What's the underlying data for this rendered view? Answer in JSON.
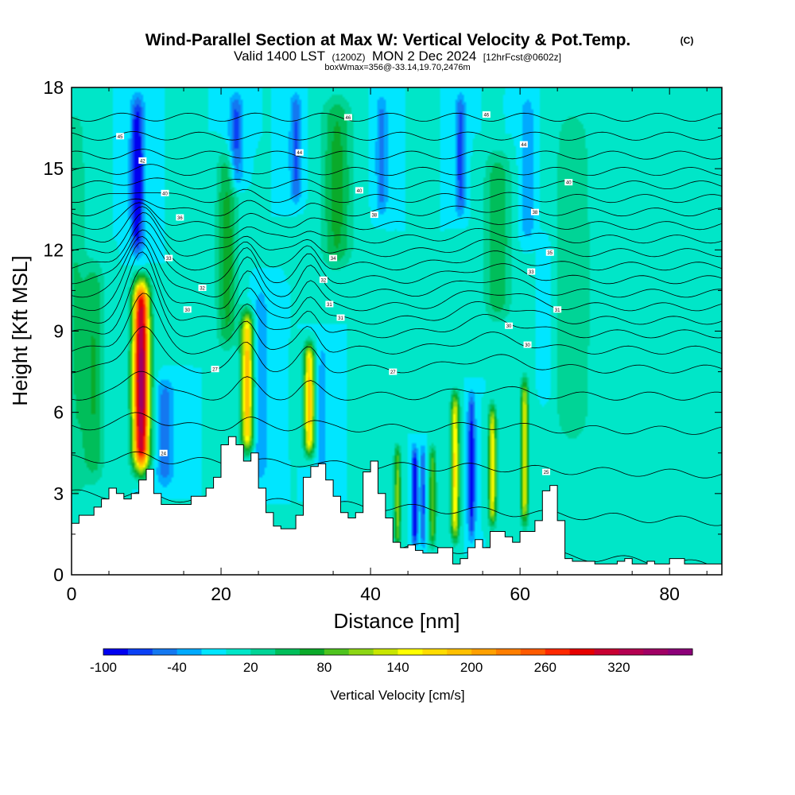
{
  "chart_data": {
    "type": "heatmap",
    "title": "Wind-Parallel Section at Max W: Vertical Velocity & Pot.Temp.",
    "title_suffix": "(C)",
    "subtitle": {
      "valid": "Valid 1400 LST",
      "utc": "(1200Z)",
      "date": "MON 2 Dec 2024",
      "forecast": "[12hrFcst@0602z]"
    },
    "box_info": "boxWmax=356@-33.14,19.70,2476m",
    "xlabel": "Distance [nm]",
    "ylabel": "Height [Kft MSL]",
    "xlim": [
      0,
      87
    ],
    "ylim": [
      0,
      18
    ],
    "x_ticks": [
      0,
      20,
      40,
      60,
      80
    ],
    "y_ticks": [
      0,
      3,
      6,
      9,
      12,
      15,
      18
    ],
    "background_value": 0,
    "updrafts": [
      {
        "x": 9.3,
        "base": 3.5,
        "top": 11.2,
        "peak": 356,
        "width": 1.1
      },
      {
        "x": 23.5,
        "base": 4.3,
        "top": 10.0,
        "peak": 200,
        "width": 0.8
      },
      {
        "x": 31.8,
        "base": 4.2,
        "top": 8.8,
        "peak": 190,
        "width": 0.7
      },
      {
        "x": 51.3,
        "base": 1.0,
        "top": 7.0,
        "peak": 170,
        "width": 0.55
      },
      {
        "x": 56.3,
        "base": 1.6,
        "top": 6.5,
        "peak": 160,
        "width": 0.5
      },
      {
        "x": 60.6,
        "base": 1.6,
        "top": 7.5,
        "peak": 150,
        "width": 0.5
      },
      {
        "x": 43.6,
        "base": 0.8,
        "top": 5.0,
        "peak": 110,
        "width": 0.45
      },
      {
        "x": 48.3,
        "base": 0.8,
        "top": 5.0,
        "peak": 100,
        "width": 0.45
      },
      {
        "x": 20.8,
        "base": 8.0,
        "top": 16.0,
        "peak": 70,
        "width": 1.4
      },
      {
        "x": 35.5,
        "base": 11.0,
        "top": 18.0,
        "peak": 70,
        "width": 2.0
      },
      {
        "x": 57.0,
        "base": 9.0,
        "top": 16.0,
        "peak": 60,
        "width": 1.8
      },
      {
        "x": 3.0,
        "base": 3.0,
        "top": 12.0,
        "peak": 60,
        "width": 1.4
      },
      {
        "x": 0.5,
        "base": 2.0,
        "top": 18.0,
        "peak": 40,
        "width": 1.5
      },
      {
        "x": 67.0,
        "base": 4.0,
        "top": 18.0,
        "peak": 35,
        "width": 3.0
      }
    ],
    "downdrafts": [
      {
        "x": 8.8,
        "base": 11.5,
        "top": 18.0,
        "peak": -100,
        "width": 0.9
      },
      {
        "x": 12.5,
        "base": 3.0,
        "top": 7.5,
        "peak": -55,
        "width": 1.2
      },
      {
        "x": 22.0,
        "base": 14.0,
        "top": 18.0,
        "peak": -70,
        "width": 0.9
      },
      {
        "x": 25.3,
        "base": 3.0,
        "top": 11.0,
        "peak": -40,
        "width": 1.0
      },
      {
        "x": 30.0,
        "base": 13.5,
        "top": 18.0,
        "peak": -65,
        "width": 0.8
      },
      {
        "x": 33.5,
        "base": 3.0,
        "top": 9.0,
        "peak": -30,
        "width": 0.8
      },
      {
        "x": 45.9,
        "base": 0.8,
        "top": 5.0,
        "peak": -100,
        "width": 0.4
      },
      {
        "x": 53.5,
        "base": 1.0,
        "top": 7.0,
        "peak": -90,
        "width": 0.5
      },
      {
        "x": 47.0,
        "base": 0.8,
        "top": 5.0,
        "peak": -70,
        "width": 0.35
      },
      {
        "x": 52.0,
        "base": 13.0,
        "top": 18.0,
        "peak": -70,
        "width": 0.7
      },
      {
        "x": 41.5,
        "base": 13.0,
        "top": 18.0,
        "peak": -50,
        "width": 0.8
      },
      {
        "x": 61.0,
        "base": 12.0,
        "top": 18.0,
        "peak": -40,
        "width": 1.0
      },
      {
        "x": 63.5,
        "base": 6.0,
        "top": 13.0,
        "peak": -25,
        "width": 0.9
      }
    ],
    "terrain": {
      "x": [
        0,
        1,
        2,
        3,
        4,
        5,
        6,
        7,
        8,
        9,
        10,
        11,
        12,
        13,
        14,
        15,
        16,
        17,
        18,
        19,
        20,
        21,
        22,
        23,
        24,
        25,
        26,
        27,
        28,
        29,
        30,
        31,
        32,
        33,
        34,
        35,
        36,
        37,
        38,
        39,
        40,
        41,
        42,
        43,
        44,
        45,
        46,
        47,
        48,
        49,
        50,
        51,
        52,
        53,
        54,
        55,
        56,
        57,
        58,
        59,
        60,
        61,
        62,
        63,
        64,
        65,
        66,
        67,
        68,
        69,
        70,
        71,
        72,
        73,
        74,
        75,
        76,
        77,
        78,
        79,
        80,
        81,
        82,
        83,
        84,
        85,
        86,
        87
      ],
      "height": [
        1.9,
        2.2,
        2.2,
        2.5,
        2.8,
        3.2,
        3.0,
        2.8,
        3.0,
        3.5,
        3.9,
        3.0,
        2.6,
        2.6,
        2.6,
        2.6,
        2.9,
        2.9,
        3.2,
        3.6,
        4.8,
        5.1,
        4.8,
        4.2,
        4.5,
        3.2,
        2.3,
        1.8,
        1.7,
        1.7,
        2.2,
        3.6,
        4.0,
        4.1,
        3.5,
        2.9,
        2.3,
        2.1,
        2.3,
        3.8,
        4.2,
        3.0,
        2.1,
        1.2,
        1.0,
        1.1,
        0.9,
        0.8,
        0.8,
        1.0,
        1.0,
        0.4,
        0.6,
        1.0,
        1.3,
        1.0,
        1.6,
        1.6,
        1.4,
        1.2,
        1.6,
        1.6,
        2.0,
        3.1,
        3.3,
        2.0,
        0.6,
        0.5,
        0.5,
        0.5,
        0.4,
        0.4,
        0.4,
        0.5,
        0.6,
        0.4,
        0.4,
        0.5,
        0.4,
        0.4,
        0.6,
        0.6,
        0.4,
        0.4,
        0.4,
        0.4,
        0.4,
        0.4
      ]
    },
    "colorbar": {
      "label": "Vertical Velocity [cm/s]",
      "min": -100,
      "max": 380,
      "step": 20,
      "tick_values": [
        -100,
        -40,
        20,
        80,
        140,
        200,
        260,
        320
      ],
      "tick_labels": [
        "-100",
        "-40",
        "20",
        "80",
        "140",
        "200",
        "260",
        "320"
      ],
      "colors": [
        "#0000f0",
        "#0a40f5",
        "#1478f0",
        "#00aaff",
        "#00e6ff",
        "#00e6c8",
        "#00d496",
        "#00be5a",
        "#0aaa2a",
        "#4ec31e",
        "#8cd614",
        "#c8e600",
        "#ffff00",
        "#ffdc00",
        "#ffc000",
        "#ffa000",
        "#ff7e00",
        "#ff5a00",
        "#ff2800",
        "#e60000",
        "#c80032",
        "#b40050",
        "#a00064",
        "#8c0078"
      ]
    },
    "isentropes": {
      "levels": [
        24,
        25,
        26,
        27,
        28,
        29,
        30,
        31,
        32,
        33,
        34,
        35,
        36,
        37,
        38,
        39,
        40,
        41,
        42,
        43,
        44,
        45,
        46
      ],
      "base_heights": [
        1.8,
        3.0,
        4.3,
        5.5,
        6.6,
        7.6,
        8.3,
        8.9,
        9.4,
        9.9,
        10.4,
        10.9,
        11.4,
        11.9,
        12.4,
        12.9,
        13.4,
        13.9,
        14.4,
        14.9,
        15.5,
        16.2,
        16.9
      ],
      "labels": [
        {
          "x": 12.3,
          "y": 4.5,
          "text": "24"
        },
        {
          "x": 19.2,
          "y": 7.6,
          "text": "27"
        },
        {
          "x": 43.0,
          "y": 7.5,
          "text": "27"
        },
        {
          "x": 63.5,
          "y": 3.8,
          "text": "25"
        },
        {
          "x": 15.5,
          "y": 9.8,
          "text": "30"
        },
        {
          "x": 17.5,
          "y": 10.6,
          "text": "32"
        },
        {
          "x": 13.0,
          "y": 11.7,
          "text": "33"
        },
        {
          "x": 34.5,
          "y": 10.0,
          "text": "31"
        },
        {
          "x": 33.7,
          "y": 10.9,
          "text": "32"
        },
        {
          "x": 36.0,
          "y": 9.5,
          "text": "31"
        },
        {
          "x": 58.5,
          "y": 9.2,
          "text": "30"
        },
        {
          "x": 61.0,
          "y": 8.5,
          "text": "30"
        },
        {
          "x": 65.0,
          "y": 9.8,
          "text": "31"
        },
        {
          "x": 61.5,
          "y": 11.2,
          "text": "33"
        },
        {
          "x": 35.0,
          "y": 11.7,
          "text": "34"
        },
        {
          "x": 64.0,
          "y": 11.9,
          "text": "35"
        },
        {
          "x": 14.5,
          "y": 13.2,
          "text": "36"
        },
        {
          "x": 40.5,
          "y": 13.3,
          "text": "38"
        },
        {
          "x": 62.0,
          "y": 13.4,
          "text": "38"
        },
        {
          "x": 12.5,
          "y": 14.1,
          "text": "40"
        },
        {
          "x": 38.5,
          "y": 14.2,
          "text": "40"
        },
        {
          "x": 66.5,
          "y": 14.5,
          "text": "40"
        },
        {
          "x": 9.5,
          "y": 15.3,
          "text": "42"
        },
        {
          "x": 30.5,
          "y": 15.6,
          "text": "44"
        },
        {
          "x": 60.5,
          "y": 15.9,
          "text": "44"
        },
        {
          "x": 6.5,
          "y": 16.2,
          "text": "45"
        },
        {
          "x": 37.0,
          "y": 16.9,
          "text": "46"
        },
        {
          "x": 55.5,
          "y": 17.0,
          "text": "46"
        }
      ]
    }
  }
}
